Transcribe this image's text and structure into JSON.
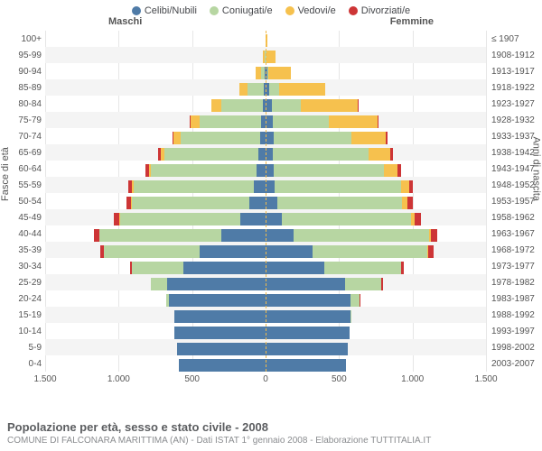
{
  "colors": {
    "celibi": "#4f7ba7",
    "coniugati": "#b7d6a2",
    "vedovi": "#f6c14e",
    "divorziati": "#cd3536",
    "grid": "#e6e6e6",
    "altRow": "#f4f4f4",
    "centerDash": "#f0b94a"
  },
  "legend": [
    {
      "key": "celibi",
      "label": "Celibi/Nubili"
    },
    {
      "key": "coniugati",
      "label": "Coniugati/e"
    },
    {
      "key": "vedovi",
      "label": "Vedovi/e"
    },
    {
      "key": "divorziati",
      "label": "Divorziati/e"
    }
  ],
  "genderLabels": {
    "m": "Maschi",
    "f": "Femmine"
  },
  "yTitleLeft": "Fasce di età",
  "yTitleRight": "Anni di nascita",
  "xAxis": {
    "max": 1500,
    "ticks": [
      1500,
      1000,
      500,
      0,
      500,
      1000,
      1500
    ],
    "labels": [
      "1.500",
      "1.000",
      "500",
      "0",
      "500",
      "1.000",
      "1.500"
    ]
  },
  "footer": {
    "title": "Popolazione per età, sesso e stato civile - 2008",
    "sub": "COMUNE DI FALCONARA MARITTIMA (AN) - Dati ISTAT 1° gennaio 2008 - Elaborazione TUTTITALIA.IT"
  },
  "rows": [
    {
      "age": "100+",
      "birth": "≤ 1907",
      "m": {
        "c": 0,
        "k": 0,
        "v": 2,
        "d": 0
      },
      "f": {
        "c": 0,
        "k": 0,
        "v": 10,
        "d": 0
      }
    },
    {
      "age": "95-99",
      "birth": "1908-1912",
      "m": {
        "c": 2,
        "k": 5,
        "v": 10,
        "d": 0
      },
      "f": {
        "c": 3,
        "k": 2,
        "v": 60,
        "d": 0
      }
    },
    {
      "age": "90-94",
      "birth": "1913-1917",
      "m": {
        "c": 5,
        "k": 25,
        "v": 35,
        "d": 0
      },
      "f": {
        "c": 10,
        "k": 10,
        "v": 150,
        "d": 0
      }
    },
    {
      "age": "85-89",
      "birth": "1918-1922",
      "m": {
        "c": 10,
        "k": 110,
        "v": 60,
        "d": 0
      },
      "f": {
        "c": 25,
        "k": 70,
        "v": 310,
        "d": 0
      }
    },
    {
      "age": "80-84",
      "birth": "1923-1927",
      "m": {
        "c": 20,
        "k": 280,
        "v": 70,
        "d": 2
      },
      "f": {
        "c": 40,
        "k": 200,
        "v": 390,
        "d": 5
      }
    },
    {
      "age": "75-79",
      "birth": "1928-1932",
      "m": {
        "c": 30,
        "k": 420,
        "v": 60,
        "d": 5
      },
      "f": {
        "c": 50,
        "k": 380,
        "v": 330,
        "d": 10
      }
    },
    {
      "age": "70-74",
      "birth": "1933-1937",
      "m": {
        "c": 40,
        "k": 540,
        "v": 45,
        "d": 10
      },
      "f": {
        "c": 55,
        "k": 530,
        "v": 230,
        "d": 15
      }
    },
    {
      "age": "65-69",
      "birth": "1938-1942",
      "m": {
        "c": 50,
        "k": 640,
        "v": 25,
        "d": 15
      },
      "f": {
        "c": 50,
        "k": 650,
        "v": 150,
        "d": 20
      }
    },
    {
      "age": "60-64",
      "birth": "1943-1947",
      "m": {
        "c": 60,
        "k": 720,
        "v": 15,
        "d": 20
      },
      "f": {
        "c": 55,
        "k": 750,
        "v": 95,
        "d": 25
      }
    },
    {
      "age": "55-59",
      "birth": "1948-1952",
      "m": {
        "c": 80,
        "k": 820,
        "v": 12,
        "d": 25
      },
      "f": {
        "c": 60,
        "k": 860,
        "v": 55,
        "d": 30
      }
    },
    {
      "age": "50-54",
      "birth": "1953-1957",
      "m": {
        "c": 110,
        "k": 800,
        "v": 8,
        "d": 30
      },
      "f": {
        "c": 80,
        "k": 850,
        "v": 35,
        "d": 35
      }
    },
    {
      "age": "45-49",
      "birth": "1958-1962",
      "m": {
        "c": 170,
        "k": 820,
        "v": 5,
        "d": 35
      },
      "f": {
        "c": 110,
        "k": 880,
        "v": 25,
        "d": 40
      }
    },
    {
      "age": "40-44",
      "birth": "1963-1967",
      "m": {
        "c": 300,
        "k": 830,
        "v": 3,
        "d": 35
      },
      "f": {
        "c": 190,
        "k": 920,
        "v": 15,
        "d": 45
      }
    },
    {
      "age": "35-39",
      "birth": "1968-1972",
      "m": {
        "c": 450,
        "k": 650,
        "v": 2,
        "d": 25
      },
      "f": {
        "c": 320,
        "k": 780,
        "v": 8,
        "d": 35
      }
    },
    {
      "age": "30-34",
      "birth": "1973-1977",
      "m": {
        "c": 560,
        "k": 350,
        "v": 0,
        "d": 10
      },
      "f": {
        "c": 400,
        "k": 520,
        "v": 3,
        "d": 20
      }
    },
    {
      "age": "25-29",
      "birth": "1978-1982",
      "m": {
        "c": 670,
        "k": 110,
        "v": 0,
        "d": 3
      },
      "f": {
        "c": 540,
        "k": 250,
        "v": 0,
        "d": 8
      }
    },
    {
      "age": "20-24",
      "birth": "1983-1987",
      "m": {
        "c": 660,
        "k": 15,
        "v": 0,
        "d": 0
      },
      "f": {
        "c": 580,
        "k": 60,
        "v": 0,
        "d": 2
      }
    },
    {
      "age": "15-19",
      "birth": "1988-1992",
      "m": {
        "c": 620,
        "k": 0,
        "v": 0,
        "d": 0
      },
      "f": {
        "c": 580,
        "k": 3,
        "v": 0,
        "d": 0
      }
    },
    {
      "age": "10-14",
      "birth": "1993-1997",
      "m": {
        "c": 620,
        "k": 0,
        "v": 0,
        "d": 0
      },
      "f": {
        "c": 570,
        "k": 0,
        "v": 0,
        "d": 0
      }
    },
    {
      "age": "5-9",
      "birth": "1998-2002",
      "m": {
        "c": 600,
        "k": 0,
        "v": 0,
        "d": 0
      },
      "f": {
        "c": 560,
        "k": 0,
        "v": 0,
        "d": 0
      }
    },
    {
      "age": "0-4",
      "birth": "2003-2007",
      "m": {
        "c": 590,
        "k": 0,
        "v": 0,
        "d": 0
      },
      "f": {
        "c": 550,
        "k": 0,
        "v": 0,
        "d": 0
      }
    }
  ]
}
